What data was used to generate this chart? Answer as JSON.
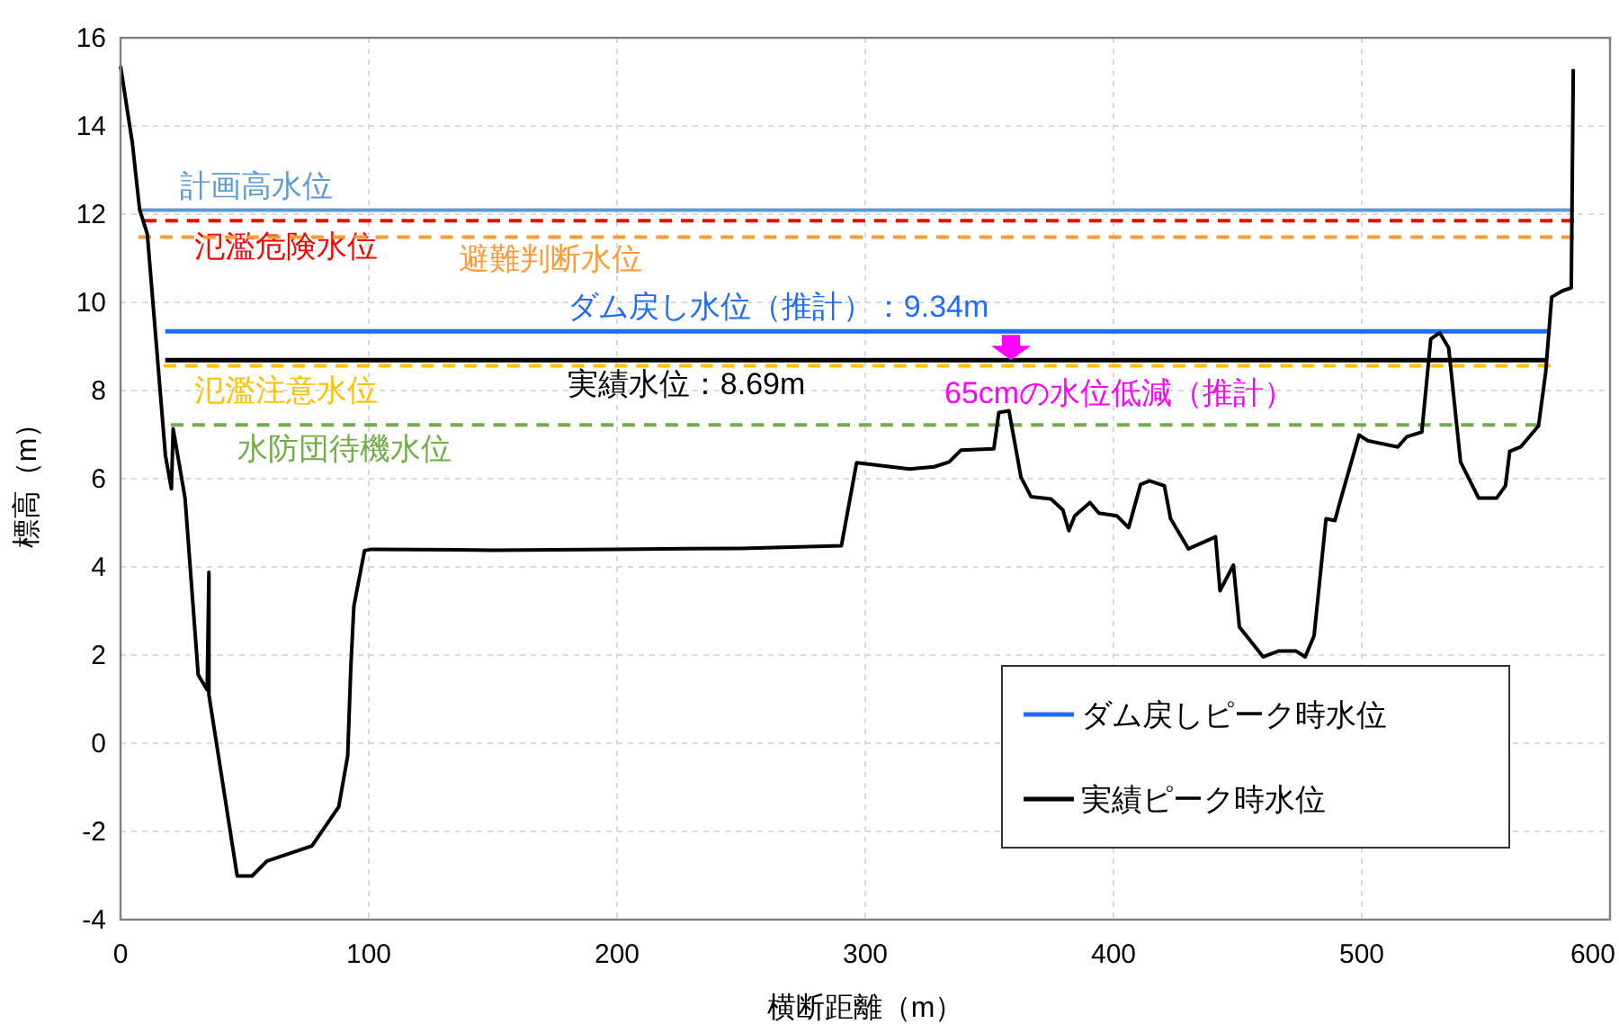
{
  "chart_data": {
    "type": "line",
    "xlabel": "横断距離（m）",
    "ylabel": "標高（m）",
    "xlim": [
      0,
      600
    ],
    "xticks": [
      0,
      100,
      200,
      300,
      400,
      500,
      600
    ],
    "ylim": [
      -4,
      16
    ],
    "yticks": [
      -4,
      -2,
      0,
      2,
      4,
      6,
      8,
      10,
      12,
      14,
      16
    ],
    "grid": true,
    "legend": "bottom right",
    "ref_lines": [
      {
        "axis": "y",
        "value": 12.09,
        "label": "計画高水位",
        "color": "#5b9bd5",
        "line_style": "solid"
      },
      {
        "axis": "y",
        "value": 11.85,
        "label": "氾濫危険水位",
        "color": "#ff0000",
        "line_style": "dashed"
      },
      {
        "axis": "y",
        "value": 11.48,
        "label": "避難判断水位",
        "color": "#ff9933",
        "line_style": "dashed"
      },
      {
        "axis": "y",
        "value": 8.56,
        "label": "氾濫注意水位",
        "color": "#ffc000",
        "line_style": "dashed"
      },
      {
        "axis": "y",
        "value": 7.22,
        "label": "水防団待機水位",
        "color": "#70ad47",
        "line_style": "dashed"
      }
    ],
    "series": [
      {
        "name": "ダム戻しピーク時水位",
        "color": "#1e6cff",
        "line_style": "solid",
        "x": [
          18,
          575
        ],
        "values": [
          9.34,
          9.34
        ]
      },
      {
        "name": "実績ピーク時水位",
        "color": "#000000",
        "line_style": "solid",
        "x": [
          18,
          575
        ],
        "values": [
          8.69,
          8.69
        ]
      },
      {
        "color": "#000000",
        "line_style": "solid",
        "x": [
          0,
          4.8,
          7.7,
          10.8,
          18.1,
          20.5,
          21.2,
          26,
          31.3,
          34.9,
          35.6,
          35.6,
          47,
          53,
          59,
          77.1,
          87.9,
          91.5,
          92.8,
          94,
          98.3,
          101.2,
          150,
          200,
          250,
          290.4,
          296.5,
          318,
          327.8,
          333.8,
          338.6,
          351.8,
          353.8,
          357.9,
          362.7,
          366.8,
          374.8,
          379.6,
          382,
          384.4,
          390.5,
          394.1,
          401.3,
          406.1,
          410.9,
          414.5,
          420.5,
          423,
          430.2,
          441.1,
          442.9,
          448.3,
          450.7,
          460.3,
          466.4,
          473.6,
          477.2,
          480.8,
          485.6,
          489.2,
          491,
          498.9,
          502.5,
          514.5,
          518.1,
          524.2,
          527.8,
          531.4,
          535,
          539.8,
          547.1,
          554.3,
          557.9,
          559.6,
          564,
          571.2,
          574.1,
          576.5,
          580.8,
          584.4,
          585.2
        ],
        "values": [
          15.36,
          13.6,
          12.1,
          11.55,
          6.52,
          5.77,
          7.13,
          5.56,
          1.55,
          1.21,
          3.88,
          1.1,
          -3.01,
          -3.01,
          -2.67,
          -2.33,
          -1.44,
          -0.29,
          1.76,
          3.11,
          4.37,
          4.4,
          4.38,
          4.4,
          4.42,
          4.48,
          6.36,
          6.22,
          6.27,
          6.38,
          6.65,
          6.68,
          7.5,
          7.54,
          6.04,
          5.59,
          5.54,
          5.29,
          4.82,
          5.16,
          5.46,
          5.22,
          5.16,
          4.89,
          5.87,
          5.95,
          5.84,
          5.09,
          4.41,
          4.68,
          3.46,
          4.04,
          2.64,
          1.96,
          2.09,
          2.09,
          1.96,
          2.44,
          5.09,
          5.05,
          5.43,
          6.99,
          6.86,
          6.72,
          6.95,
          7.06,
          9.17,
          9.31,
          8.97,
          6.38,
          5.56,
          5.56,
          5.84,
          6.62,
          6.72,
          7.2,
          8.42,
          10.12,
          10.26,
          10.33,
          15.29
        ]
      }
    ],
    "annotations": [
      {
        "text": "ダム戻し水位（推計）：9.34m",
        "x": 180,
        "y": 9.34
      },
      {
        "text": "実績水位：8.69m",
        "x": 180,
        "y": 8.69
      },
      "65cmの水位低減（推計）"
    ]
  }
}
